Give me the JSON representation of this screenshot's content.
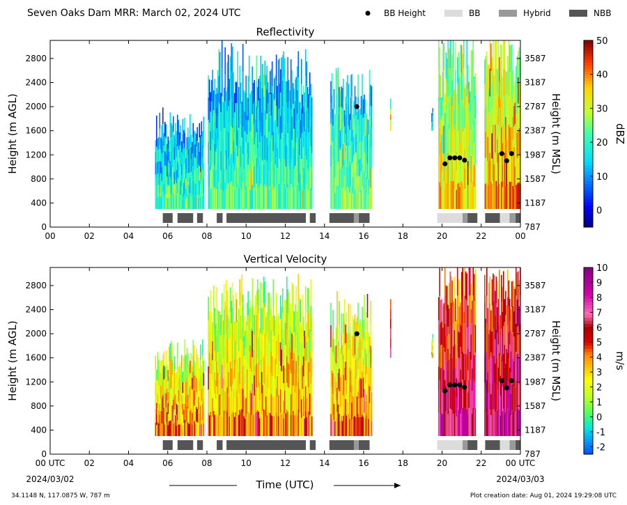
{
  "header": {
    "title": "Seven Oaks Dam MRR:  March 02, 2024 UTC",
    "legend": [
      {
        "label": "BB Height",
        "kind": "dot",
        "color": "#000000"
      },
      {
        "label": "BB",
        "kind": "bar",
        "color": "#dcdcdc"
      },
      {
        "label": "Hybrid",
        "kind": "bar",
        "color": "#999999"
      },
      {
        "label": "NBB",
        "kind": "bar",
        "color": "#555555"
      }
    ]
  },
  "footer": {
    "location": "34.1148 N, 117.0875 W, 787 m",
    "created": "Plot creation date: Aug 01, 2024 19:29:08 UTC",
    "xlabel": "Time (UTC)",
    "start_date": "2024/03/02",
    "end_date": "2024/03/03"
  },
  "chart_data": [
    {
      "type": "heatmap",
      "title": "Reflectivity",
      "xlabel": "",
      "ylabel": "Height (m AGL)",
      "y2label": "Height (m MSL)",
      "xlim": [
        0,
        24
      ],
      "ylim": [
        0,
        3100
      ],
      "x_ticks": [
        "00",
        "02",
        "04",
        "06",
        "08",
        "10",
        "12",
        "14",
        "16",
        "18",
        "20",
        "22",
        "00"
      ],
      "y_ticks": [
        0,
        400,
        800,
        1200,
        1600,
        2000,
        2400,
        2800
      ],
      "y2_ticks": [
        787,
        1187,
        1587,
        1987,
        2387,
        2787,
        3187,
        3587
      ],
      "colorbar": {
        "label": "dBZ",
        "min": -5,
        "max": 50,
        "ticks": [
          0,
          10,
          20,
          30,
          40,
          50
        ],
        "palette": "jet"
      },
      "echo_segments": [
        {
          "start": 5.35,
          "end": 7.85,
          "top": 1750,
          "base": 300,
          "intensity": 0.3
        },
        {
          "start": 8.05,
          "end": 13.35,
          "top": 2700,
          "base": 300,
          "intensity": 0.33
        },
        {
          "start": 14.3,
          "end": 16.4,
          "top": 2400,
          "base": 300,
          "intensity": 0.38
        },
        {
          "start": 17.35,
          "end": 17.4,
          "top": 2350,
          "base": 1600,
          "intensity": 0.45
        },
        {
          "start": 19.45,
          "end": 19.52,
          "top": 1950,
          "base": 1600,
          "intensity": 0.3
        },
        {
          "start": 19.8,
          "end": 21.7,
          "top": 3000,
          "base": 300,
          "intensity": 0.55
        },
        {
          "start": 22.15,
          "end": 23.98,
          "top": 3000,
          "base": 300,
          "intensity": 0.62
        }
      ],
      "bb_height_points": [
        {
          "x": 15.65,
          "y": 2000
        },
        {
          "x": 20.15,
          "y": 1050
        },
        {
          "x": 20.4,
          "y": 1150
        },
        {
          "x": 20.65,
          "y": 1150
        },
        {
          "x": 20.9,
          "y": 1150
        },
        {
          "x": 21.15,
          "y": 1110
        },
        {
          "x": 23.05,
          "y": 1220
        },
        {
          "x": 23.3,
          "y": 1100
        },
        {
          "x": 23.55,
          "y": 1220
        }
      ],
      "bb_type_segments": [
        {
          "start": 5.75,
          "end": 6.25,
          "type": "NBB"
        },
        {
          "start": 6.5,
          "end": 7.3,
          "type": "NBB"
        },
        {
          "start": 7.5,
          "end": 7.8,
          "type": "NBB"
        },
        {
          "start": 8.5,
          "end": 8.8,
          "type": "NBB"
        },
        {
          "start": 9.0,
          "end": 13.05,
          "type": "NBB"
        },
        {
          "start": 13.25,
          "end": 13.55,
          "type": "NBB"
        },
        {
          "start": 14.25,
          "end": 15.5,
          "type": "NBB"
        },
        {
          "start": 15.5,
          "end": 15.75,
          "type": "Hybrid"
        },
        {
          "start": 15.75,
          "end": 16.3,
          "type": "NBB"
        },
        {
          "start": 19.75,
          "end": 21.05,
          "type": "BB"
        },
        {
          "start": 21.05,
          "end": 21.3,
          "type": "Hybrid"
        },
        {
          "start": 21.3,
          "end": 21.8,
          "type": "NBB"
        },
        {
          "start": 22.2,
          "end": 22.95,
          "type": "NBB"
        },
        {
          "start": 22.95,
          "end": 23.45,
          "type": "BB"
        },
        {
          "start": 23.45,
          "end": 23.75,
          "type": "Hybrid"
        },
        {
          "start": 23.75,
          "end": 24.0,
          "type": "NBB"
        }
      ]
    },
    {
      "type": "heatmap",
      "title": "Vertical Velocity",
      "xlabel": "Time (UTC)",
      "ylabel": "Height (m AGL)",
      "y2label": "Height (m MSL)",
      "xlim": [
        0,
        24
      ],
      "ylim": [
        0,
        3100
      ],
      "x_ticks": [
        "00 UTC",
        "02",
        "04",
        "06",
        "08",
        "10",
        "12",
        "14",
        "16",
        "18",
        "20",
        "22",
        "00 UTC"
      ],
      "y_ticks": [
        0,
        400,
        800,
        1200,
        1600,
        2000,
        2400,
        2800
      ],
      "y2_ticks": [
        787,
        1187,
        1587,
        1987,
        2387,
        2787,
        3187,
        3587
      ],
      "colorbar": {
        "label": "m/s",
        "min": -2.5,
        "max": 10,
        "ticks": [
          -2,
          -1,
          0,
          1,
          2,
          3,
          4,
          5,
          6,
          7,
          8,
          9,
          10
        ],
        "palette": "velocity"
      },
      "echo_segments": [
        {
          "start": 5.35,
          "end": 7.85,
          "top": 1750,
          "base": 300,
          "intensity": 0.35
        },
        {
          "start": 8.05,
          "end": 13.35,
          "top": 2700,
          "base": 300,
          "intensity": 0.33
        },
        {
          "start": 14.3,
          "end": 16.4,
          "top": 2400,
          "base": 300,
          "intensity": 0.38
        },
        {
          "start": 17.35,
          "end": 17.4,
          "top": 2450,
          "base": 1600,
          "intensity": 0.5
        },
        {
          "start": 19.45,
          "end": 19.52,
          "top": 1950,
          "base": 1600,
          "intensity": 0.3
        },
        {
          "start": 19.8,
          "end": 21.7,
          "top": 3000,
          "base": 300,
          "intensity": 0.6
        },
        {
          "start": 22.15,
          "end": 23.98,
          "top": 3000,
          "base": 300,
          "intensity": 0.62
        }
      ],
      "bb_height_points": [
        {
          "x": 15.65,
          "y": 2000
        },
        {
          "x": 20.15,
          "y": 1050
        },
        {
          "x": 20.4,
          "y": 1150
        },
        {
          "x": 20.65,
          "y": 1150
        },
        {
          "x": 20.9,
          "y": 1150
        },
        {
          "x": 21.15,
          "y": 1110
        },
        {
          "x": 23.05,
          "y": 1220
        },
        {
          "x": 23.3,
          "y": 1100
        },
        {
          "x": 23.55,
          "y": 1220
        }
      ],
      "bb_type_segments": [
        {
          "start": 5.75,
          "end": 6.25,
          "type": "NBB"
        },
        {
          "start": 6.5,
          "end": 7.3,
          "type": "NBB"
        },
        {
          "start": 7.5,
          "end": 7.8,
          "type": "NBB"
        },
        {
          "start": 8.5,
          "end": 8.8,
          "type": "NBB"
        },
        {
          "start": 9.0,
          "end": 13.05,
          "type": "NBB"
        },
        {
          "start": 13.25,
          "end": 13.55,
          "type": "NBB"
        },
        {
          "start": 14.25,
          "end": 15.5,
          "type": "NBB"
        },
        {
          "start": 15.5,
          "end": 15.75,
          "type": "Hybrid"
        },
        {
          "start": 15.75,
          "end": 16.3,
          "type": "NBB"
        },
        {
          "start": 19.75,
          "end": 21.05,
          "type": "BB"
        },
        {
          "start": 21.05,
          "end": 21.3,
          "type": "Hybrid"
        },
        {
          "start": 21.3,
          "end": 21.8,
          "type": "NBB"
        },
        {
          "start": 22.2,
          "end": 22.95,
          "type": "NBB"
        },
        {
          "start": 22.95,
          "end": 23.45,
          "type": "BB"
        },
        {
          "start": 23.45,
          "end": 23.75,
          "type": "Hybrid"
        },
        {
          "start": 23.75,
          "end": 24.0,
          "type": "NBB"
        }
      ]
    }
  ]
}
